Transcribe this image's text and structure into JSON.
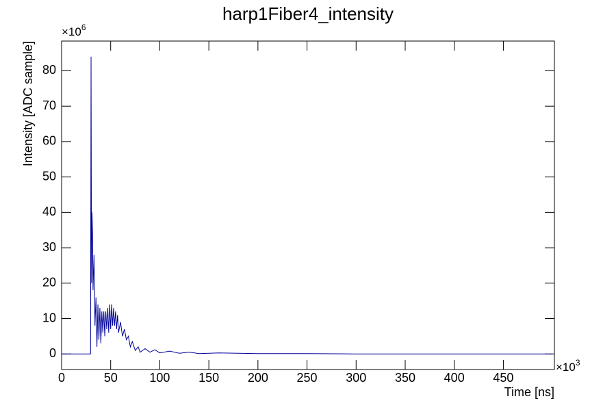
{
  "chart_data": {
    "type": "line",
    "title": "harp1Fiber4_intensity",
    "x_label": "Time [ns]",
    "y_label": "Intensity [ADC sample]",
    "x_multiplier": {
      "base": "×10",
      "exponent": "3"
    },
    "y_multiplier": {
      "base": "×10",
      "exponent": "6"
    },
    "color": "#000099",
    "x": [
      0,
      28,
      29.5,
      30,
      30.5,
      31,
      31.5,
      32,
      33,
      34,
      35,
      36,
      37,
      38,
      39,
      40,
      41,
      42,
      43,
      44,
      45,
      46,
      47,
      48,
      49,
      50,
      51,
      52,
      53,
      54,
      55,
      56,
      57,
      58,
      60,
      62,
      64,
      66,
      68,
      70,
      72,
      75,
      78,
      80,
      85,
      90,
      95,
      100,
      110,
      120,
      130,
      140,
      160,
      200,
      250,
      300,
      400,
      500
    ],
    "values": [
      0,
      0,
      0,
      84,
      20,
      40,
      34,
      18,
      28,
      8,
      16,
      2,
      14,
      4,
      13,
      3,
      12,
      6,
      12,
      5,
      12,
      7,
      13,
      6,
      14,
      7,
      14,
      8,
      13,
      8,
      12,
      7,
      11,
      6,
      9,
      5,
      7,
      4,
      5,
      2,
      3.5,
      1,
      2,
      0.5,
      1.5,
      0.5,
      1.2,
      0.3,
      0.8,
      0.2,
      0.5,
      0.1,
      0.3,
      0.1,
      0.1,
      0,
      0,
      0
    ],
    "xlim": [
      0,
      502
    ],
    "ylim": [
      -4.4,
      88.4
    ],
    "xticks": [
      0,
      50,
      100,
      150,
      200,
      250,
      300,
      350,
      400,
      450
    ],
    "yticks": [
      0,
      10,
      20,
      30,
      40,
      50,
      60,
      70,
      80
    ]
  }
}
